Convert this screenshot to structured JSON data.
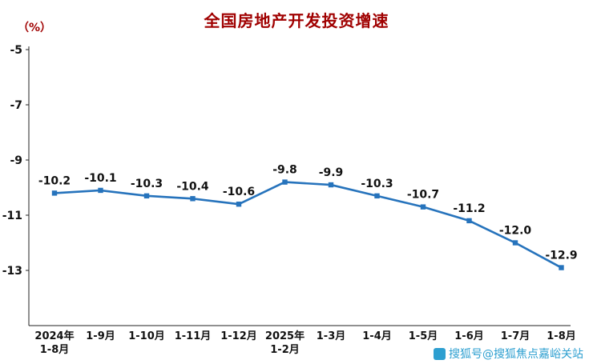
{
  "watermark": {
    "text": "搜狐号@搜狐焦点嘉峪关站"
  },
  "colors": {
    "title": "#a00000",
    "line": "#2673bc",
    "watermark": "#2d9fd0",
    "axis": "#222222",
    "text": "#111111"
  },
  "chart_data": {
    "type": "line",
    "title": "全国房地产开发投资增速",
    "ylabel": "（%）",
    "xlabel": "",
    "categories": [
      [
        "2024年",
        "1-8月"
      ],
      [
        "1-9月"
      ],
      [
        "1-10月"
      ],
      [
        "1-11月"
      ],
      [
        "1-12月"
      ],
      [
        "2025年",
        "1-2月"
      ],
      [
        "1-3月"
      ],
      [
        "1-4月"
      ],
      [
        "1-5月"
      ],
      [
        "1-6月"
      ],
      [
        "1-7月"
      ],
      [
        "1-8月"
      ]
    ],
    "series": [
      {
        "name": "全国房地产开发投资增速",
        "values": [
          -10.2,
          -10.1,
          -10.3,
          -10.4,
          -10.6,
          -9.8,
          -9.9,
          -10.3,
          -10.7,
          -11.2,
          -12.0,
          -12.9
        ]
      }
    ],
    "ylim": [
      -15,
      -5
    ],
    "yticks": [
      -5,
      -7,
      -9,
      -11,
      -13
    ],
    "grid": false,
    "legend": "none"
  }
}
